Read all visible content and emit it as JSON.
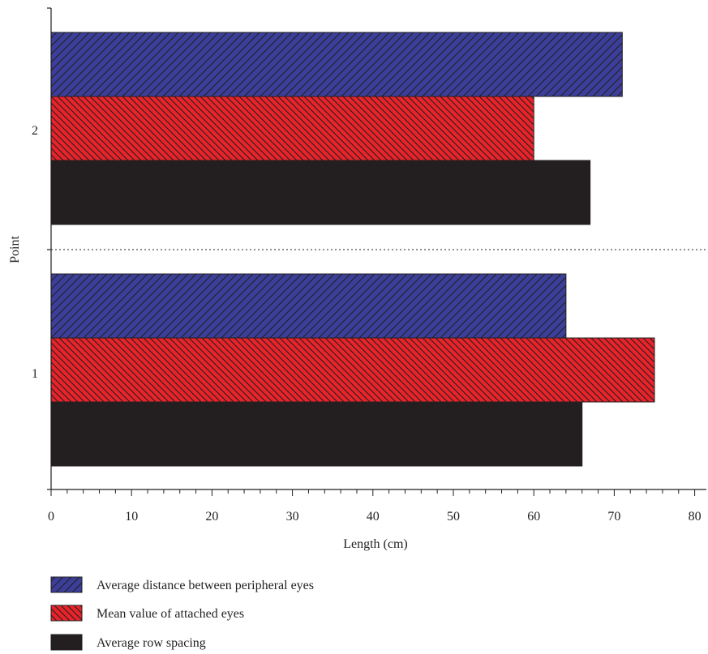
{
  "chart_data": {
    "type": "bar",
    "orientation": "horizontal",
    "categories": [
      "1",
      "2"
    ],
    "series": [
      {
        "name": "Average distance between peripheral eyes",
        "values": [
          64,
          71
        ],
        "color": "#3b3f9a",
        "pattern": "forward-hatch"
      },
      {
        "name": "Mean value of attached eyes",
        "values": [
          75,
          60
        ],
        "color": "#e8232a",
        "pattern": "back-hatch"
      },
      {
        "name": "Average row spacing",
        "values": [
          66,
          67
        ],
        "color": "#231f20",
        "pattern": "solid"
      }
    ],
    "xlabel": "Length (cm)",
    "ylabel": "Point",
    "xlim": [
      0,
      81
    ],
    "x_ticks": [
      0,
      10,
      20,
      30,
      40,
      50,
      60,
      70,
      80
    ],
    "grid": false,
    "category_separator": "dotted",
    "legend_position": "bottom"
  }
}
